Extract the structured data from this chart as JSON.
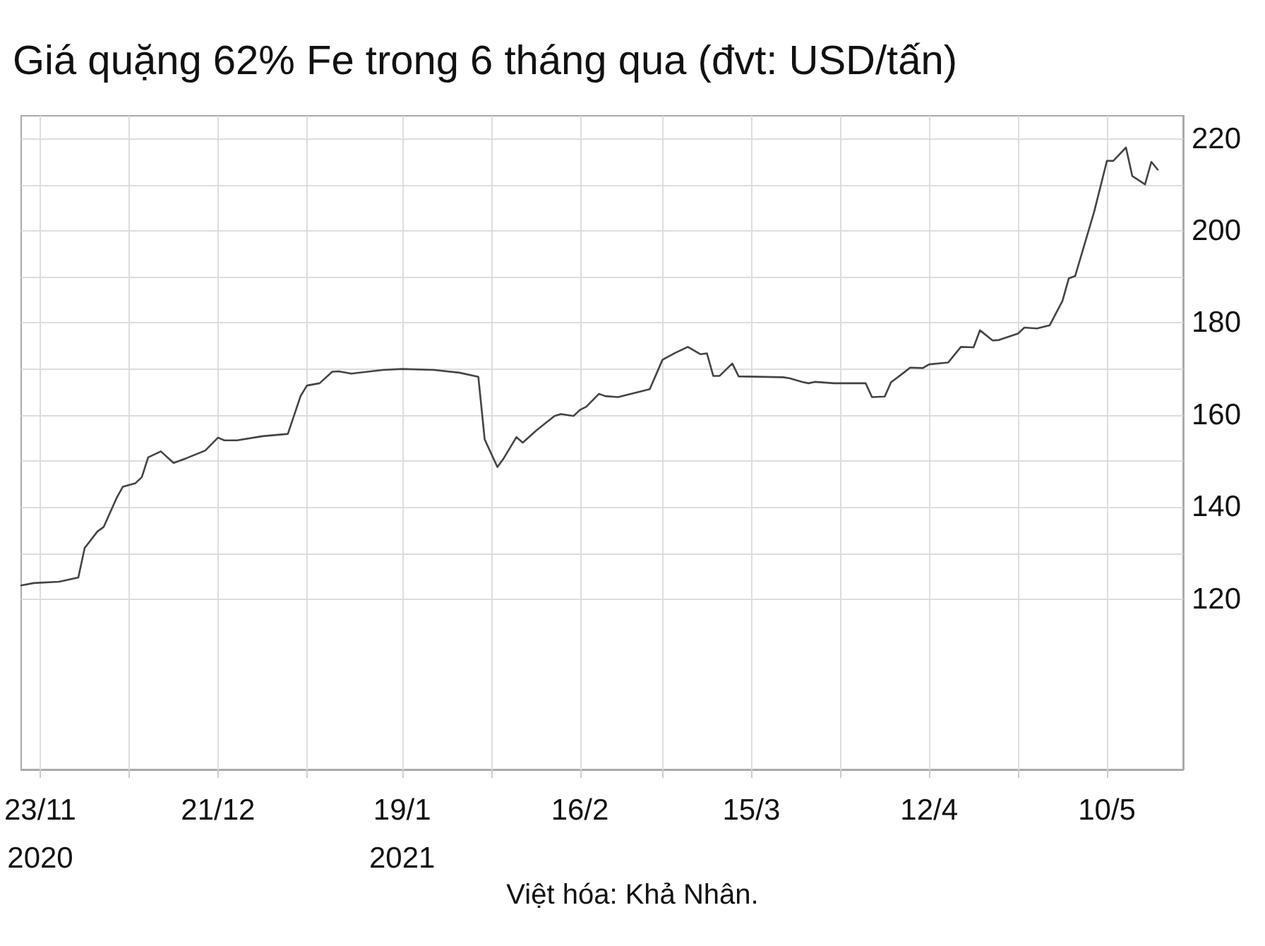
{
  "chart_data": {
    "type": "line",
    "title": "Giá quặng 62% Fe trong 6 tháng qua (đvt: USD/tấn)",
    "annotations": [
      "Việt hóa: Khả Nhân."
    ],
    "x": [
      "2020-11-20",
      "2020-11-22",
      "2020-11-26",
      "2020-11-29",
      "2020-11-30",
      "2020-12-02",
      "2020-12-03",
      "2020-12-05",
      "2020-12-06",
      "2020-12-08",
      "2020-12-09",
      "2020-12-10",
      "2020-12-12",
      "2020-12-14",
      "2020-12-16",
      "2020-12-19",
      "2020-12-21",
      "2020-12-22",
      "2020-12-24",
      "2020-12-28",
      "2021-01-01",
      "2021-01-03",
      "2021-01-04",
      "2021-01-06",
      "2021-01-08",
      "2021-01-09",
      "2021-01-11",
      "2021-01-16",
      "2021-01-19",
      "2021-01-24",
      "2021-01-28",
      "2021-01-31",
      "2021-02-01",
      "2021-02-03",
      "2021-02-04",
      "2021-02-06",
      "2021-02-07",
      "2021-02-09",
      "2021-02-12",
      "2021-02-13",
      "2021-02-15",
      "2021-02-16",
      "2021-02-17",
      "2021-02-19",
      "2021-02-20",
      "2021-02-22",
      "2021-02-27",
      "2021-03-01",
      "2021-03-03",
      "2021-03-05",
      "2021-03-07",
      "2021-03-08",
      "2021-03-09",
      "2021-03-10",
      "2021-03-12",
      "2021-03-13",
      "2021-03-20",
      "2021-03-21",
      "2021-03-23",
      "2021-03-24",
      "2021-03-25",
      "2021-03-28",
      "2021-04-02",
      "2021-04-03",
      "2021-04-05",
      "2021-04-06",
      "2021-04-08",
      "2021-04-09",
      "2021-04-11",
      "2021-04-12",
      "2021-04-15",
      "2021-04-17",
      "2021-04-19",
      "2021-04-20",
      "2021-04-22",
      "2021-04-23",
      "2021-04-26",
      "2021-04-27",
      "2021-04-29",
      "2021-05-01",
      "2021-05-03",
      "2021-05-04",
      "2021-05-05",
      "2021-05-08",
      "2021-05-10",
      "2021-05-11",
      "2021-05-13",
      "2021-05-14",
      "2021-05-16",
      "2021-05-17",
      "2021-05-18"
    ],
    "series": [
      {
        "color": "#444444",
        "values": [
          123.0,
          123.5,
          123.8,
          124.7,
          131.1,
          134.7,
          135.7,
          141.9,
          144.4,
          145.2,
          146.5,
          150.8,
          152.1,
          149.6,
          150.6,
          152.3,
          155.1,
          154.5,
          154.5,
          155.4,
          155.9,
          164.1,
          166.4,
          166.9,
          169.4,
          169.5,
          169.0,
          169.8,
          170.0,
          169.8,
          169.2,
          168.3,
          154.7,
          148.7,
          150.6,
          155.2,
          154.0,
          156.5,
          159.8,
          160.2,
          159.8,
          161.1,
          161.8,
          164.6,
          164.1,
          163.9,
          165.6,
          172.0,
          173.5,
          174.8,
          173.2,
          173.4,
          168.5,
          168.5,
          171.2,
          168.4,
          168.2,
          168.0,
          167.2,
          166.9,
          167.2,
          166.9,
          166.9,
          163.9,
          164.0,
          167.1,
          169.2,
          170.3,
          170.2,
          171.0,
          171.4,
          174.8,
          174.7,
          178.4,
          176.2,
          176.3,
          177.7,
          179.0,
          178.8,
          179.5,
          184.8,
          189.7,
          190.2,
          204.2,
          215.2,
          215.2,
          218.1,
          211.9,
          210.1,
          215.0,
          213.3
        ]
      }
    ],
    "xlim": [
      "2020-11-20",
      "2021-05-22"
    ],
    "xticks": [
      {
        "value": "2020-11-23",
        "label": "23/11\n2020"
      },
      {
        "value": "2020-12-07",
        "label": null
      },
      {
        "value": "2020-12-21",
        "label": "21/12"
      },
      {
        "value": "2021-01-04",
        "label": null
      },
      {
        "value": "2021-01-19",
        "label": "19/1\n2021"
      },
      {
        "value": "2021-02-02",
        "label": null
      },
      {
        "value": "2021-02-16",
        "label": "16/2"
      },
      {
        "value": "2021-03-01",
        "label": null
      },
      {
        "value": "2021-03-15",
        "label": "15/3"
      },
      {
        "value": "2021-03-29",
        "label": null
      },
      {
        "value": "2021-04-12",
        "label": "12/4"
      },
      {
        "value": "2021-04-26",
        "label": null
      },
      {
        "value": "2021-05-10",
        "label": "10/5"
      }
    ],
    "ylim": [
      83,
      225
    ],
    "yticks": [
      120,
      {
        "value": 130,
        "label": null
      },
      140,
      {
        "value": 150,
        "label": null
      },
      160,
      {
        "value": 170,
        "label": null
      },
      180,
      {
        "value": 190,
        "label": null
      },
      200,
      {
        "value": 210,
        "label": null
      },
      220
    ],
    "grid": true,
    "marker": "none",
    "line_style": "solid"
  }
}
